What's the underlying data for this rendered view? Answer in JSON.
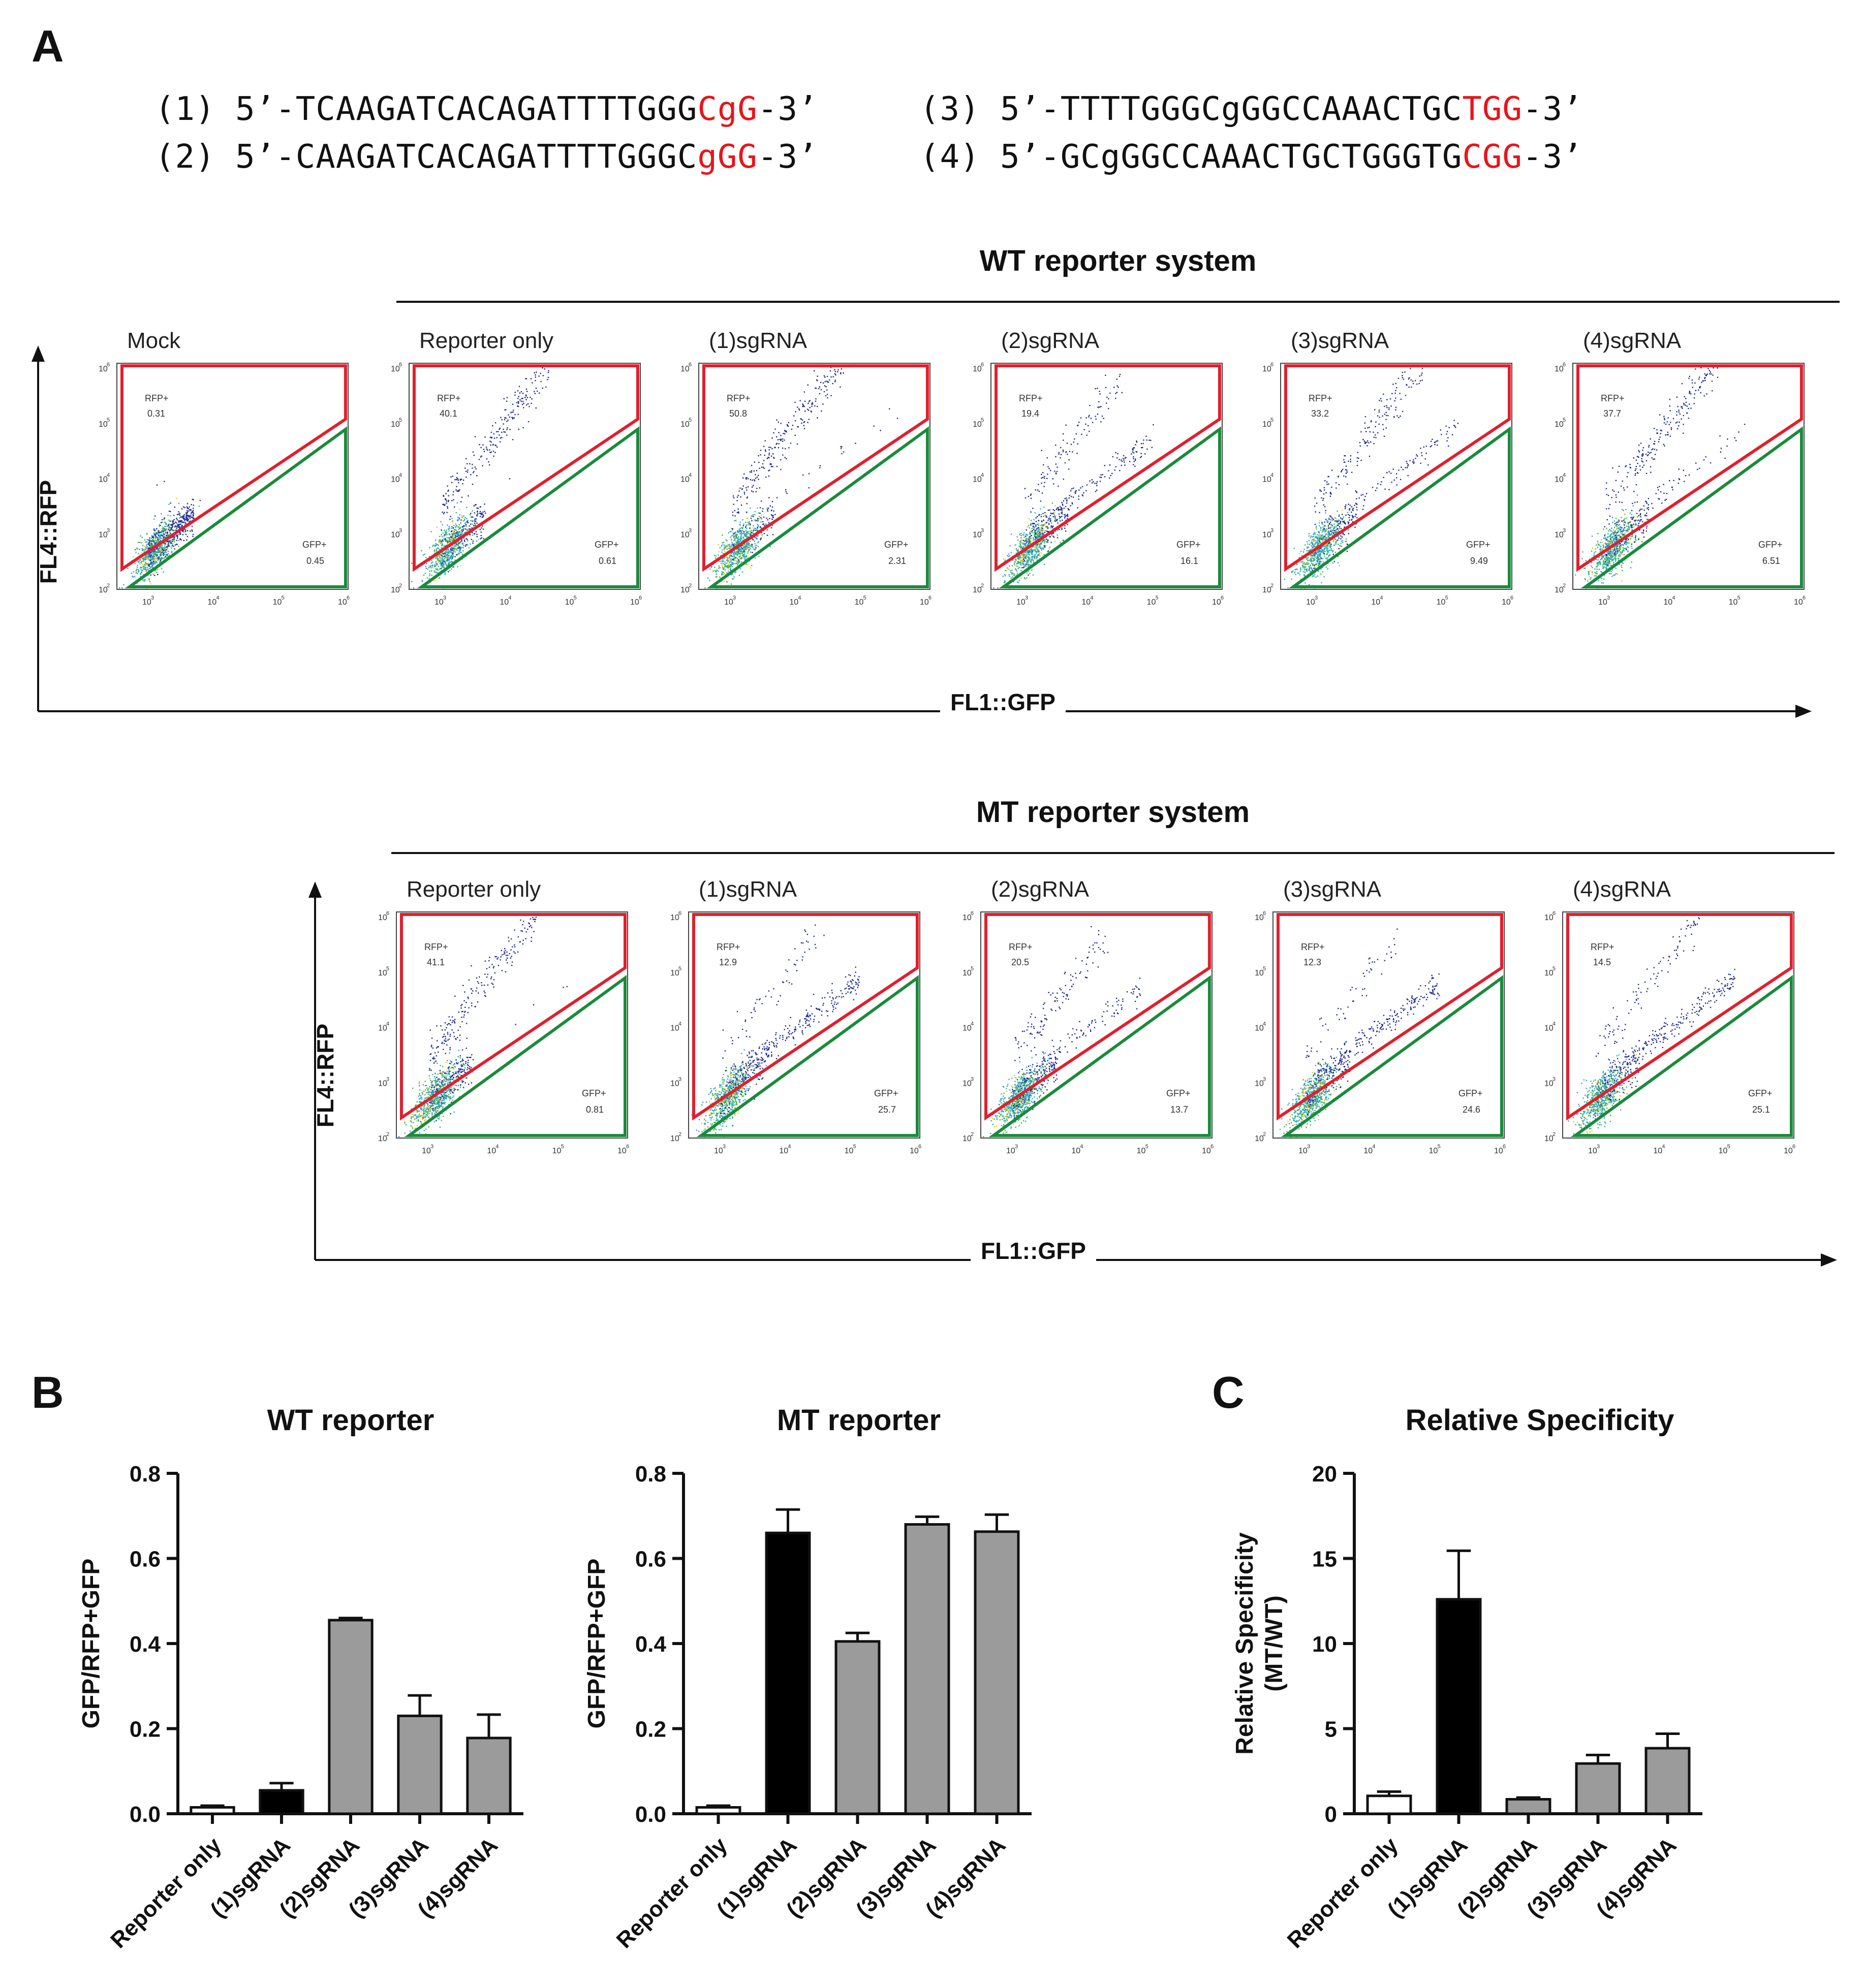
{
  "panel_labels": {
    "a": "A",
    "b": "B",
    "c": "C"
  },
  "sequences": [
    {
      "num": "(1)",
      "pre": "5’-TCAAGATCACAGATTTTGGG",
      "pam": "CgG",
      "post": "-3’"
    },
    {
      "num": "(2)",
      "pre": "5’-CAAGATCACAGATTTTGGGC",
      "pam": "gGG",
      "post": "-3’"
    },
    {
      "num": "(3)",
      "pre": "5’-TTTTGGGCgGGCCAAACTGC",
      "pam": "TGG",
      "post": "-3’"
    },
    {
      "num": "(4)",
      "pre": "5’-GCgGGCCAAACTGCTGGGTG",
      "pam": "CGG",
      "post": "-3’"
    }
  ],
  "colors": {
    "pam": "#e8141b",
    "rfp_gate": "#e0202e",
    "gfp_gate": "#1b8a3c",
    "black_bar": "#000000",
    "gray_bar": "#9b9b9b"
  },
  "flow": {
    "wt_title": "WT reporter system",
    "mt_title": "MT reporter system",
    "y_axis": "FL4::RFP",
    "x_axis": "FL1::GFP",
    "rfp_label": "RFP+",
    "gfp_label": "GFP+",
    "ticks": [
      "10",
      "10",
      "10",
      "10",
      "10"
    ],
    "exps": [
      "2",
      "3",
      "4",
      "5",
      "6"
    ],
    "xticks": [
      "10",
      "10",
      "10",
      "10"
    ],
    "xexps": [
      "3",
      "4",
      "5",
      "6"
    ],
    "wt_plots": [
      {
        "title": "Mock",
        "rfp": "0.31",
        "gfp": "0.45"
      },
      {
        "title": "Reporter only",
        "rfp": "40.1",
        "gfp": "0.61"
      },
      {
        "title": "(1)sgRNA",
        "rfp": "50.8",
        "gfp": "2.31"
      },
      {
        "title": "(2)sgRNA",
        "rfp": "19.4",
        "gfp": "16.1"
      },
      {
        "title": "(3)sgRNA",
        "rfp": "33.2",
        "gfp": "9.49"
      },
      {
        "title": "(4)sgRNA",
        "rfp": "37.7",
        "gfp": "6.51"
      }
    ],
    "mt_plots": [
      {
        "title": "Reporter only",
        "rfp": "41.1",
        "gfp": "0.81"
      },
      {
        "title": "(1)sgRNA",
        "rfp": "12.9",
        "gfp": "25.7"
      },
      {
        "title": "(2)sgRNA",
        "rfp": "20.5",
        "gfp": "13.7"
      },
      {
        "title": "(3)sgRNA",
        "rfp": "12.3",
        "gfp": "24.6"
      },
      {
        "title": "(4)sgRNA",
        "rfp": "14.5",
        "gfp": "25.1"
      }
    ]
  },
  "chart_data": [
    {
      "type": "bar",
      "title": "WT reporter",
      "ylabel": "GFP/RFP+GFP",
      "categories": [
        "Reporter only",
        "(1)sgRNA",
        "(2)sgRNA",
        "(3)sgRNA",
        "(4)sgRNA"
      ],
      "values": [
        0.015,
        0.055,
        0.455,
        0.23,
        0.178
      ],
      "errors": [
        0.004,
        0.017,
        0.005,
        0.048,
        0.055
      ],
      "bar_colors": [
        "white",
        "black",
        "gray",
        "gray",
        "gray"
      ],
      "ylim": [
        0,
        0.8
      ],
      "yticks": [
        "0.0",
        "0.2",
        "0.4",
        "0.6",
        "0.8"
      ],
      "ytick_values": [
        0,
        0.2,
        0.4,
        0.6,
        0.8
      ]
    },
    {
      "type": "bar",
      "title": "MT reporter",
      "ylabel": "GFP/RFP+GFP",
      "categories": [
        "Reporter only",
        "(1)sgRNA",
        "(2)sgRNA",
        "(3)sgRNA",
        "(4)sgRNA"
      ],
      "values": [
        0.015,
        0.66,
        0.405,
        0.68,
        0.663
      ],
      "errors": [
        0.004,
        0.055,
        0.02,
        0.018,
        0.04
      ],
      "bar_colors": [
        "white",
        "black",
        "gray",
        "gray",
        "gray"
      ],
      "ylim": [
        0,
        0.8
      ],
      "yticks": [
        "0.0",
        "0.2",
        "0.4",
        "0.6",
        "0.8"
      ],
      "ytick_values": [
        0,
        0.2,
        0.4,
        0.6,
        0.8
      ]
    },
    {
      "type": "bar",
      "title": "Relative Specificity",
      "ylabel": "Relative Specificity",
      "ylabel2": "(MT/WT)",
      "categories": [
        "Reporter only",
        "(1)sgRNA",
        "(2)sgRNA",
        "(3)sgRNA",
        "(4)sgRNA"
      ],
      "values": [
        1.05,
        12.6,
        0.85,
        2.95,
        3.85
      ],
      "errors": [
        0.25,
        2.85,
        0.1,
        0.5,
        0.85
      ],
      "bar_colors": [
        "white",
        "black",
        "gray",
        "gray",
        "gray"
      ],
      "ylim": [
        0,
        20
      ],
      "yticks": [
        "0",
        "5",
        "10",
        "15",
        "20"
      ],
      "ytick_values": [
        0,
        5,
        10,
        15,
        20
      ]
    }
  ]
}
